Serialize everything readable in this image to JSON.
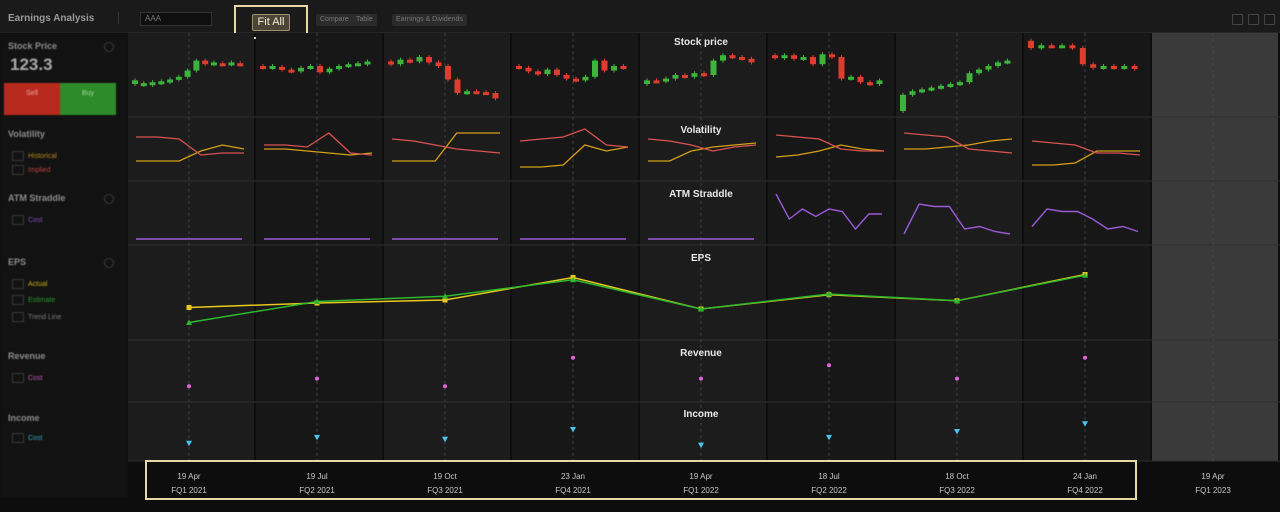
{
  "toolbar": {
    "title": "Earnings Analysis",
    "ticker_value": "AAA",
    "fit_all_label": "Fit All",
    "buttons": [
      "Compare",
      "Table"
    ],
    "extra_label": "Earnings & Dividends"
  },
  "sidebar": {
    "stock_price": {
      "title": "Stock Price",
      "value": "123.3",
      "sell_label": "Sell",
      "buy_label": "Buy"
    },
    "volatility": {
      "title": "Volatility",
      "legend": [
        {
          "label": "Historical",
          "color": "#d4a017"
        },
        {
          "label": "Implied",
          "color": "#d9534f"
        }
      ]
    },
    "atm_straddle": {
      "title": "ATM Straddle",
      "legend": [
        {
          "label": "Cost",
          "color": "#9b59d6"
        }
      ]
    },
    "eps": {
      "title": "EPS",
      "legend": [
        {
          "label": "Actual",
          "color": "#e8c81d"
        },
        {
          "label": "Estimate",
          "color": "#2db82d"
        },
        {
          "label": "Trend Line",
          "color": "#9a9a9a"
        }
      ]
    },
    "revenue": {
      "title": "Revenue",
      "legend": [
        {
          "label": "Cost",
          "color": "#e263d8"
        }
      ]
    },
    "income": {
      "title": "Income",
      "legend": [
        {
          "label": "Cost",
          "color": "#46c6e8"
        }
      ]
    }
  },
  "chart_data": {
    "type": "line",
    "panels": [
      "Stock price",
      "Volatility",
      "ATM Straddle",
      "EPS",
      "Revenue",
      "Income"
    ],
    "periods": [
      {
        "date": "19 Apr",
        "quarter": "FQ1 2021"
      },
      {
        "date": "19 Jul",
        "quarter": "FQ2 2021"
      },
      {
        "date": "19 Oct",
        "quarter": "FQ3 2021"
      },
      {
        "date": "23 Jan",
        "quarter": "FQ4 2021"
      },
      {
        "date": "19 Apr",
        "quarter": "FQ1 2022"
      },
      {
        "date": "18 Jul",
        "quarter": "FQ2 2022"
      },
      {
        "date": "18 Oct",
        "quarter": "FQ3 2022"
      },
      {
        "date": "24 Jan",
        "quarter": "FQ4 2022"
      },
      {
        "date": "19 Apr",
        "quarter": "FQ1 2023"
      }
    ],
    "eps": {
      "series": [
        {
          "name": "Actual",
          "color": "#e8c81d",
          "values": [
            0.3,
            0.36,
            0.4,
            0.7,
            0.28,
            0.47,
            0.39,
            0.74
          ]
        },
        {
          "name": "Estimate",
          "color": "#2db82d",
          "values": [
            0.1,
            0.38,
            0.45,
            0.67,
            0.28,
            0.48,
            0.39,
            0.73
          ]
        }
      ]
    },
    "revenue": {
      "color": "#e263d8",
      "values": [
        0.1,
        0.3,
        0.1,
        0.85,
        0.3,
        0.65,
        0.3,
        0.85
      ]
    },
    "income": {
      "color": "#46c6e8",
      "values": [
        0.2,
        0.35,
        0.3,
        0.55,
        0.15,
        0.35,
        0.5,
        0.7
      ]
    },
    "volatility": {
      "series": [
        {
          "name": "Historical",
          "color": "#d4a017",
          "values": [
            [
              0.2,
              0.2,
              0.2,
              0.45,
              0.6,
              0.5
            ],
            [
              0.5,
              0.5,
              0.45,
              0.4,
              0.35,
              0.4
            ],
            [
              0.2,
              0.2,
              0.2,
              0.9,
              0.9,
              0.9
            ],
            [
              0.05,
              0.05,
              0.1,
              0.6,
              0.45,
              0.55
            ],
            [
              0.2,
              0.2,
              0.45,
              0.55,
              0.6,
              0.65
            ],
            [
              0.3,
              0.35,
              0.45,
              0.6,
              0.5,
              0.45
            ],
            [
              0.5,
              0.5,
              0.55,
              0.6,
              0.7,
              0.75
            ],
            [
              0.1,
              0.1,
              0.15,
              0.45,
              0.45,
              0.45
            ]
          ]
        },
        {
          "name": "Implied",
          "color": "#d9534f",
          "values": [
            [
              0.8,
              0.8,
              0.75,
              0.35,
              0.4,
              0.4
            ],
            [
              0.6,
              0.6,
              0.55,
              0.9,
              0.4,
              0.35
            ],
            [
              0.75,
              0.7,
              0.6,
              0.5,
              0.45,
              0.4
            ],
            [
              0.7,
              0.75,
              0.8,
              1.0,
              0.6,
              0.55
            ],
            [
              0.75,
              0.7,
              0.6,
              0.45,
              0.55,
              0.6
            ],
            [
              0.85,
              0.8,
              0.75,
              0.5,
              0.45,
              0.45
            ],
            [
              0.9,
              0.85,
              0.8,
              0.5,
              0.45,
              0.4
            ],
            [
              0.7,
              0.65,
              0.6,
              0.4,
              0.4,
              0.35
            ]
          ]
        }
      ]
    },
    "atm_straddle": {
      "color": "#9b59d6",
      "values": [
        [
          0,
          0,
          0,
          0,
          0,
          0
        ],
        [
          0,
          0,
          0,
          0,
          0,
          0
        ],
        [
          0,
          0,
          0,
          0,
          0,
          0
        ],
        [
          0,
          0,
          0,
          0,
          0,
          0
        ],
        [
          0,
          0,
          0,
          0,
          0,
          0
        ],
        [
          0.9,
          0.4,
          0.6,
          0.45,
          0.6,
          0.55,
          0.2,
          0.5,
          0.5
        ],
        [
          0.1,
          0.7,
          0.65,
          0.65,
          0.2,
          0.25,
          0.15,
          0.1
        ],
        [
          0.25,
          0.6,
          0.55,
          0.55,
          0.4,
          0.2,
          0.25,
          0.15
        ]
      ]
    },
    "stock_price": {
      "candles": [
        [
          [
            30,
            34
          ],
          [
            29,
            31
          ],
          [
            29,
            32
          ],
          [
            31,
            33
          ],
          [
            32,
            35
          ],
          [
            35,
            38
          ],
          [
            38,
            45
          ],
          [
            45,
            56
          ],
          [
            56,
            52
          ],
          [
            52,
            54
          ],
          [
            53,
            52
          ],
          [
            52,
            54
          ],
          [
            53,
            52
          ]
        ],
        [
          [
            50,
            48
          ],
          [
            48,
            50
          ],
          [
            49,
            46
          ],
          [
            46,
            44
          ],
          [
            44,
            48
          ],
          [
            48,
            50
          ],
          [
            50,
            43
          ],
          [
            43,
            47
          ],
          [
            47,
            50
          ],
          [
            50,
            52
          ],
          [
            52,
            53
          ],
          [
            52,
            55
          ]
        ],
        [
          [
            55,
            52
          ],
          [
            52,
            57
          ],
          [
            57,
            55
          ],
          [
            55,
            60
          ],
          [
            60,
            54
          ],
          [
            54,
            50
          ],
          [
            50,
            35
          ],
          [
            35,
            20
          ],
          [
            20,
            22
          ],
          [
            22,
            21
          ],
          [
            21,
            20
          ],
          [
            20,
            14
          ]
        ],
        [
          [
            50,
            48
          ],
          [
            48,
            44
          ],
          [
            44,
            41
          ],
          [
            41,
            46
          ],
          [
            46,
            40
          ],
          [
            40,
            36
          ],
          [
            36,
            34
          ],
          [
            34,
            38
          ],
          [
            38,
            56
          ],
          [
            56,
            45
          ],
          [
            45,
            50
          ],
          [
            50,
            48
          ]
        ],
        [
          [
            30,
            34
          ],
          [
            34,
            33
          ],
          [
            33,
            36
          ],
          [
            36,
            40
          ],
          [
            40,
            38
          ],
          [
            38,
            42
          ],
          [
            42,
            40
          ],
          [
            40,
            56
          ],
          [
            56,
            62
          ],
          [
            62,
            60
          ],
          [
            60,
            58
          ],
          [
            58,
            54
          ]
        ],
        [
          [
            62,
            59
          ],
          [
            59,
            62
          ],
          [
            62,
            58
          ],
          [
            58,
            60
          ],
          [
            60,
            52
          ],
          [
            52,
            63
          ],
          [
            63,
            60
          ],
          [
            60,
            36
          ],
          [
            36,
            38
          ],
          [
            38,
            32
          ],
          [
            32,
            30
          ],
          [
            30,
            34
          ]
        ],
        [
          [
            0,
            18
          ],
          [
            18,
            22
          ],
          [
            22,
            24
          ],
          [
            24,
            26
          ],
          [
            26,
            28
          ],
          [
            28,
            30
          ],
          [
            30,
            32
          ],
          [
            32,
            42
          ],
          [
            42,
            46
          ],
          [
            46,
            50
          ],
          [
            50,
            54
          ],
          [
            54,
            56
          ]
        ],
        [
          [
            78,
            70
          ],
          [
            70,
            73
          ],
          [
            73,
            72
          ],
          [
            72,
            73
          ],
          [
            73,
            70
          ],
          [
            70,
            52
          ],
          [
            52,
            48
          ],
          [
            48,
            50
          ],
          [
            50,
            48
          ],
          [
            48,
            50
          ],
          [
            50,
            47
          ]
        ]
      ]
    }
  }
}
